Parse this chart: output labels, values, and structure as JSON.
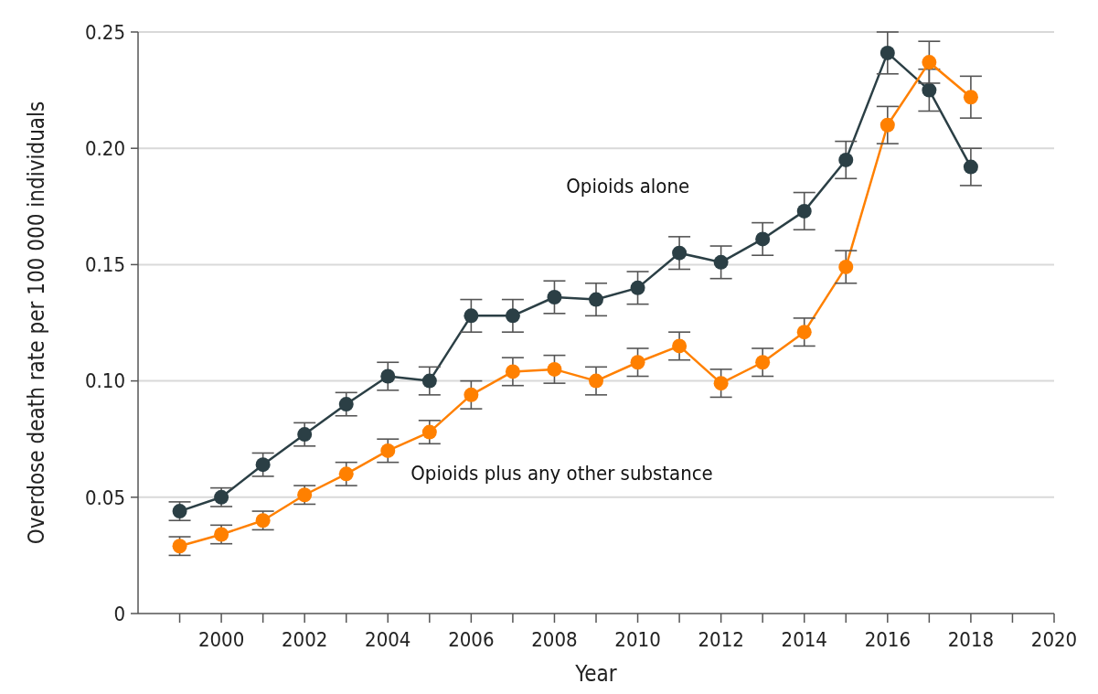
{
  "chart_data": {
    "type": "line",
    "xlabel": "Year",
    "ylabel": "Overdose death rate per 100 000 individuals",
    "x": [
      1999,
      2000,
      2001,
      2002,
      2003,
      2004,
      2005,
      2006,
      2007,
      2008,
      2009,
      2010,
      2011,
      2012,
      2013,
      2014,
      2015,
      2016,
      2017,
      2018
    ],
    "series": [
      {
        "name": "Opioids alone",
        "color": "#2b3f45",
        "values": [
          0.044,
          0.05,
          0.064,
          0.077,
          0.09,
          0.102,
          0.1,
          0.128,
          0.128,
          0.136,
          0.135,
          0.14,
          0.155,
          0.151,
          0.161,
          0.173,
          0.195,
          0.241,
          0.225,
          0.192
        ],
        "errors": [
          0.004,
          0.004,
          0.005,
          0.005,
          0.005,
          0.006,
          0.006,
          0.007,
          0.007,
          0.007,
          0.007,
          0.007,
          0.007,
          0.007,
          0.007,
          0.008,
          0.008,
          0.009,
          0.009,
          0.008
        ]
      },
      {
        "name": "Opioids plus any other substance",
        "color": "#ff8000",
        "values": [
          0.029,
          0.034,
          0.04,
          0.051,
          0.06,
          0.07,
          0.078,
          0.094,
          0.104,
          0.105,
          0.1,
          0.108,
          0.115,
          0.099,
          0.108,
          0.121,
          0.149,
          0.21,
          0.237,
          0.222
        ],
        "errors": [
          0.004,
          0.004,
          0.004,
          0.004,
          0.005,
          0.005,
          0.005,
          0.006,
          0.006,
          0.006,
          0.006,
          0.006,
          0.006,
          0.006,
          0.006,
          0.006,
          0.007,
          0.008,
          0.009,
          0.009
        ]
      }
    ],
    "xlim": [
      1998,
      2020
    ],
    "xticks": [
      {
        "value": 1999,
        "label": null
      },
      2000,
      {
        "value": 2001,
        "label": null
      },
      2002,
      {
        "value": 2003,
        "label": null
      },
      2004,
      {
        "value": 2005,
        "label": null
      },
      2006,
      {
        "value": 2007,
        "label": null
      },
      2008,
      {
        "value": 2009,
        "label": null
      },
      2010,
      {
        "value": 2011,
        "label": null
      },
      2012,
      {
        "value": 2013,
        "label": null
      },
      2014,
      {
        "value": 2015,
        "label": null
      },
      2016,
      {
        "value": 2017,
        "label": null
      },
      2018,
      {
        "value": 2019,
        "label": null
      },
      2020
    ],
    "ylim": [
      0,
      0.25
    ],
    "yticks": [
      0,
      {
        "value": 0.05,
        "label": "0.05"
      },
      {
        "value": 0.1,
        "label": "0.10"
      },
      {
        "value": 0.15,
        "label": "0.15"
      },
      {
        "value": 0.2,
        "label": "0.20"
      },
      0.25
    ],
    "grid": "y",
    "marker": "circle",
    "line_style": "solid"
  }
}
